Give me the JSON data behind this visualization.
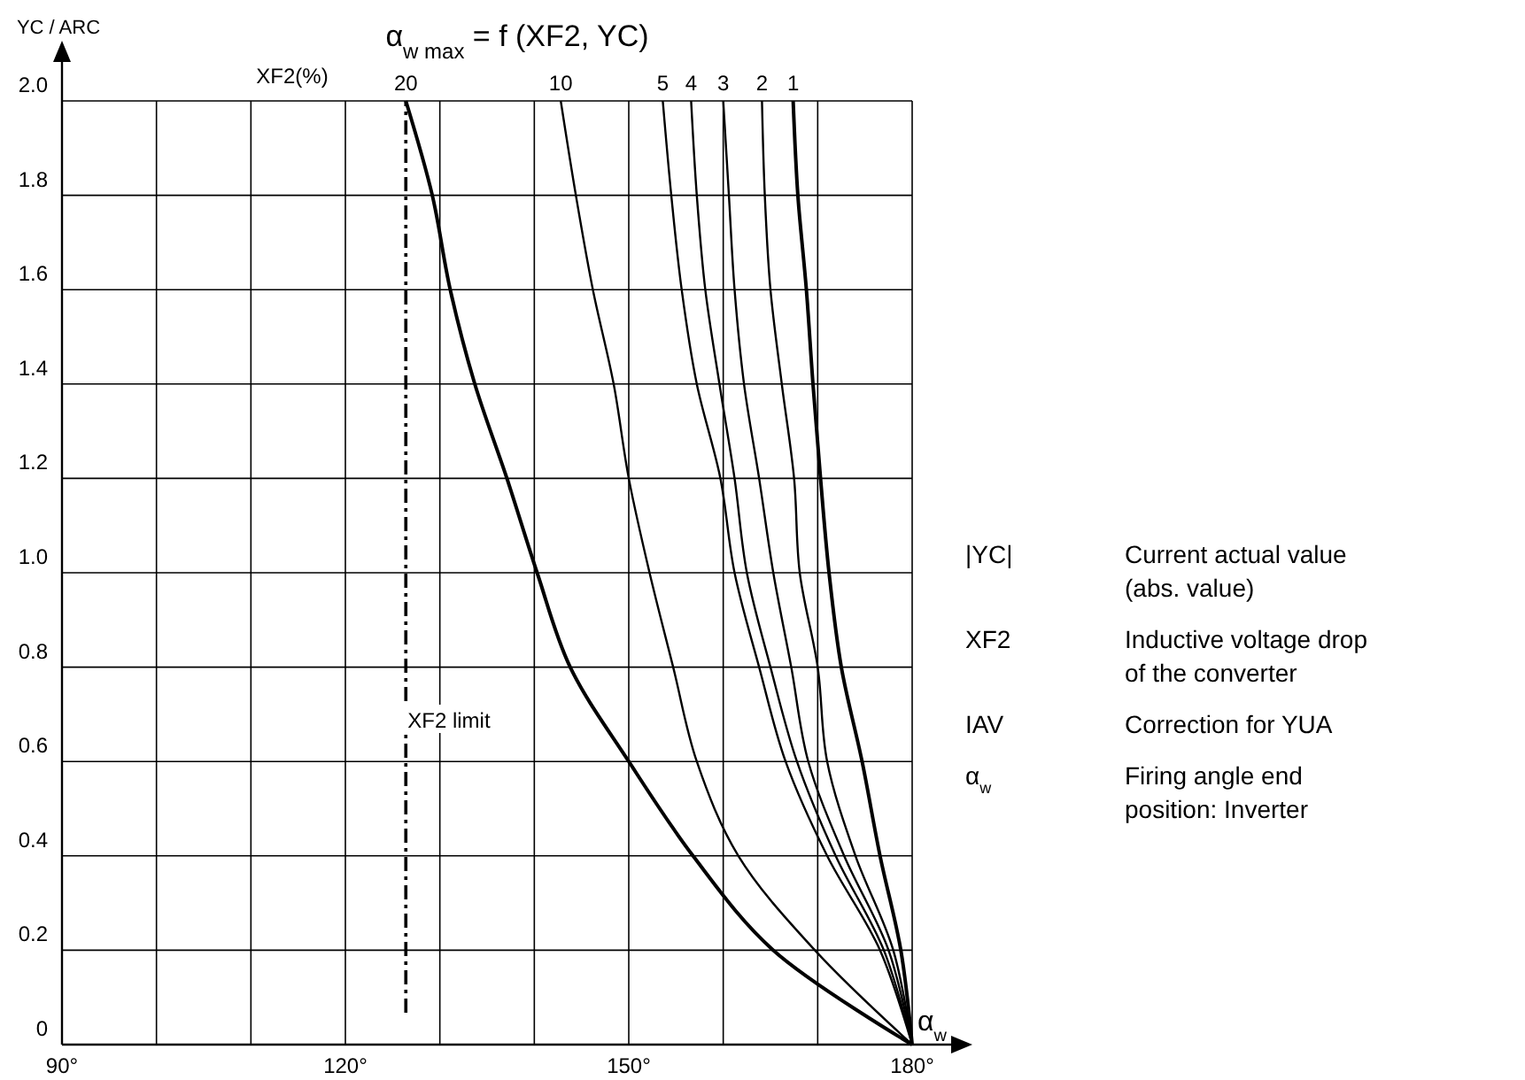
{
  "chart_data": {
    "type": "line",
    "title": "α$_{w max}$ = f (XF2, YC)",
    "xlabel": "α$_{w}$",
    "ylabel": "YC / ARC",
    "legend_title": "XF2(%)",
    "xlim": [
      90,
      180
    ],
    "ylim": [
      0,
      2
    ],
    "xticks": [
      {
        "value": 90,
        "label": "90°"
      },
      {
        "value": 100,
        "label": null
      },
      {
        "value": 110,
        "label": null
      },
      {
        "value": 120,
        "label": "120°"
      },
      {
        "value": 130,
        "label": null
      },
      {
        "value": 140,
        "label": null
      },
      {
        "value": 150,
        "label": "150°"
      },
      {
        "value": 160,
        "label": null
      },
      {
        "value": 170,
        "label": null
      },
      {
        "value": 180,
        "label": "180°"
      }
    ],
    "yticks": [
      0,
      0.2,
      0.4,
      0.6,
      0.8,
      {
        "value": 1,
        "label": "1.0"
      },
      1.2,
      1.4,
      1.6,
      1.8,
      {
        "value": 2,
        "label": "2.0"
      }
    ],
    "grid": true,
    "marker": "none",
    "series": [
      {
        "name": "20",
        "color": "#000000",
        "x": [
          180,
          165.3,
          156.8,
          150,
          143.8,
          140.3,
          137.1,
          133.7,
          131.1,
          129.2,
          126.4
        ],
        "values": [
          0,
          0.2,
          0.4,
          0.6,
          0.8,
          1,
          1.2,
          1.4,
          1.6,
          1.8,
          2
        ]
      },
      {
        "name": "10",
        "color": "#000000",
        "x": [
          180,
          169.7,
          161.6,
          157.2,
          154.7,
          152.2,
          150,
          148.4,
          146.2,
          144.4,
          142.8
        ],
        "values": [
          0,
          0.2,
          0.4,
          0.6,
          0.8,
          1,
          1.2,
          1.4,
          1.6,
          1.8,
          2
        ]
      },
      {
        "name": "5",
        "color": "#000000",
        "x": [
          180,
          176.6,
          171,
          166.6,
          163.8,
          161.2,
          159.7,
          157.2,
          155.6,
          154.5,
          153.6
        ],
        "values": [
          0,
          0.2,
          0.4,
          0.6,
          0.8,
          1,
          1.2,
          1.4,
          1.6,
          1.8,
          2
        ]
      },
      {
        "name": "4",
        "color": "#000000",
        "x": [
          180,
          177,
          171.9,
          167.8,
          165,
          162.5,
          161.2,
          159.6,
          158.1,
          157.2,
          156.6
        ],
        "values": [
          0,
          0.2,
          0.4,
          0.6,
          0.8,
          1,
          1.2,
          1.4,
          1.6,
          1.8,
          2
        ]
      },
      {
        "name": "3",
        "color": "#000000",
        "x": [
          180,
          177.5,
          172.8,
          169,
          167.2,
          165.3,
          163.8,
          162.2,
          161.2,
          160.6,
          160
        ],
        "values": [
          0,
          0.2,
          0.4,
          0.6,
          0.8,
          1,
          1.2,
          1.4,
          1.6,
          1.8,
          2
        ]
      },
      {
        "name": "2",
        "color": "#000000",
        "x": [
          180,
          178,
          174,
          171,
          170,
          168.1,
          167.5,
          166.2,
          165,
          164.4,
          164.1
        ],
        "values": [
          0,
          0.2,
          0.4,
          0.6,
          0.8,
          1,
          1.2,
          1.4,
          1.6,
          1.8,
          2
        ]
      },
      {
        "name": "1",
        "color": "#000000",
        "x": [
          180,
          178.8,
          176.6,
          174.7,
          172.5,
          171.2,
          170.3,
          169.5,
          168.8,
          167.9,
          167.4
        ],
        "values": [
          0,
          0.2,
          0.4,
          0.6,
          0.8,
          1,
          1.2,
          1.4,
          1.6,
          1.8,
          2
        ]
      }
    ],
    "ref_lines": [
      {
        "axis": "x",
        "value": 126.4,
        "label": "XF2  limit",
        "line_style": "dashdot",
        "color": "#000000"
      }
    ],
    "annotations": [
      "|YC|",
      "Current actual value (abs. value)",
      "XF2",
      "Inductive voltage drop of the converter",
      "IAV",
      "Correction for YUA",
      "α$_{w}$",
      "Firing angle end position: Inverter"
    ]
  }
}
